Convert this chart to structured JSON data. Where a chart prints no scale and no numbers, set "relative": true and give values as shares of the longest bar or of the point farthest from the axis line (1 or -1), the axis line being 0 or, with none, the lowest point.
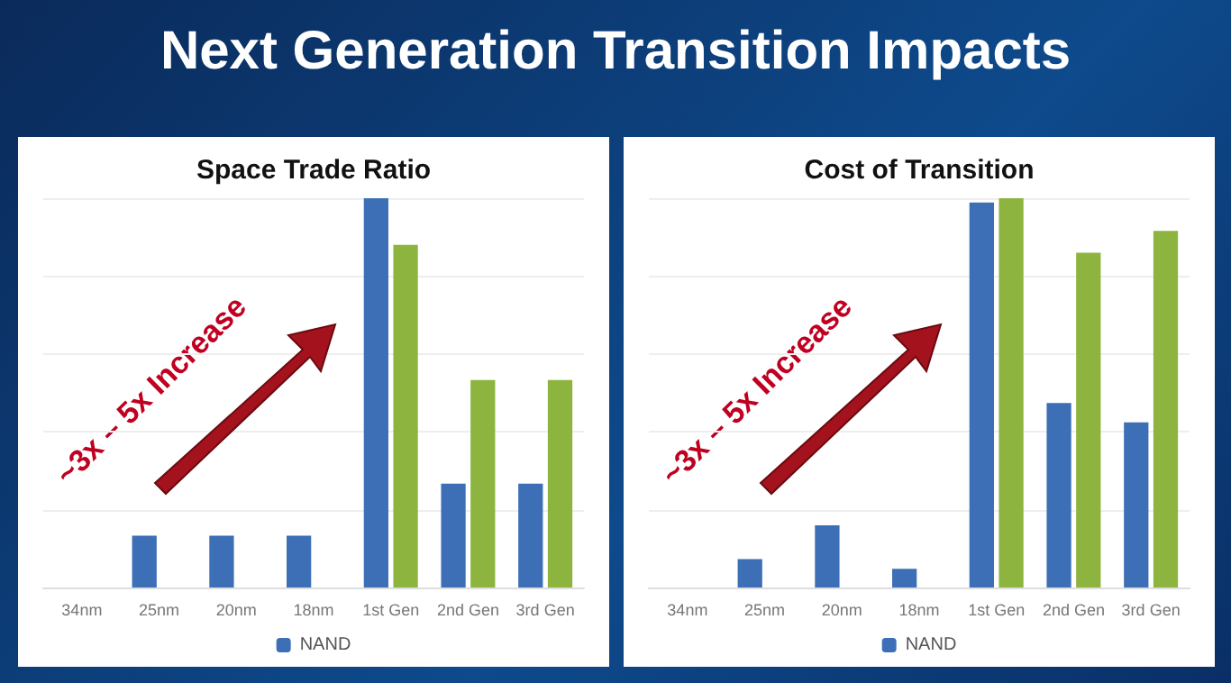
{
  "chart_data": [
    {
      "type": "bar",
      "title": "Next Generation Transition Impacts",
      "subtitle": "Space Trade Ratio",
      "relative": true,
      "grid": "y",
      "legend": "bottom",
      "categories": [
        "34nm",
        "25nm",
        "20nm",
        "18nm",
        "1st Gen",
        "2nd Gen",
        "3rd Gen"
      ],
      "series": [
        {
          "name": "NAND",
          "color": "#3d6fb6",
          "values": [
            null,
            0.133,
            0.133,
            0.133,
            1,
            0.267,
            0.267
          ]
        },
        {
          "color": "#8db43e",
          "values": [
            null,
            null,
            null,
            null,
            0.88,
            0.533,
            0.533
          ]
        }
      ],
      "annotations": [
        "~3x – 5x Increase"
      ]
    },
    {
      "type": "bar",
      "title": "Cost of Transition",
      "relative": true,
      "grid": "y",
      "legend": "bottom",
      "categories": [
        "34nm",
        "25nm",
        "20nm",
        "18nm",
        "1st Gen",
        "2nd Gen",
        "3rd Gen"
      ],
      "series": [
        {
          "name": "NAND",
          "color": "#3d6fb6",
          "values": [
            null,
            0.073,
            0.16,
            0.048,
            0.989,
            0.474,
            0.424
          ]
        },
        {
          "color": "#8db43e",
          "values": [
            null,
            null,
            null,
            null,
            1,
            0.86,
            0.916
          ]
        }
      ],
      "annotations": [
        "~3x – 5x Increase"
      ]
    }
  ]
}
